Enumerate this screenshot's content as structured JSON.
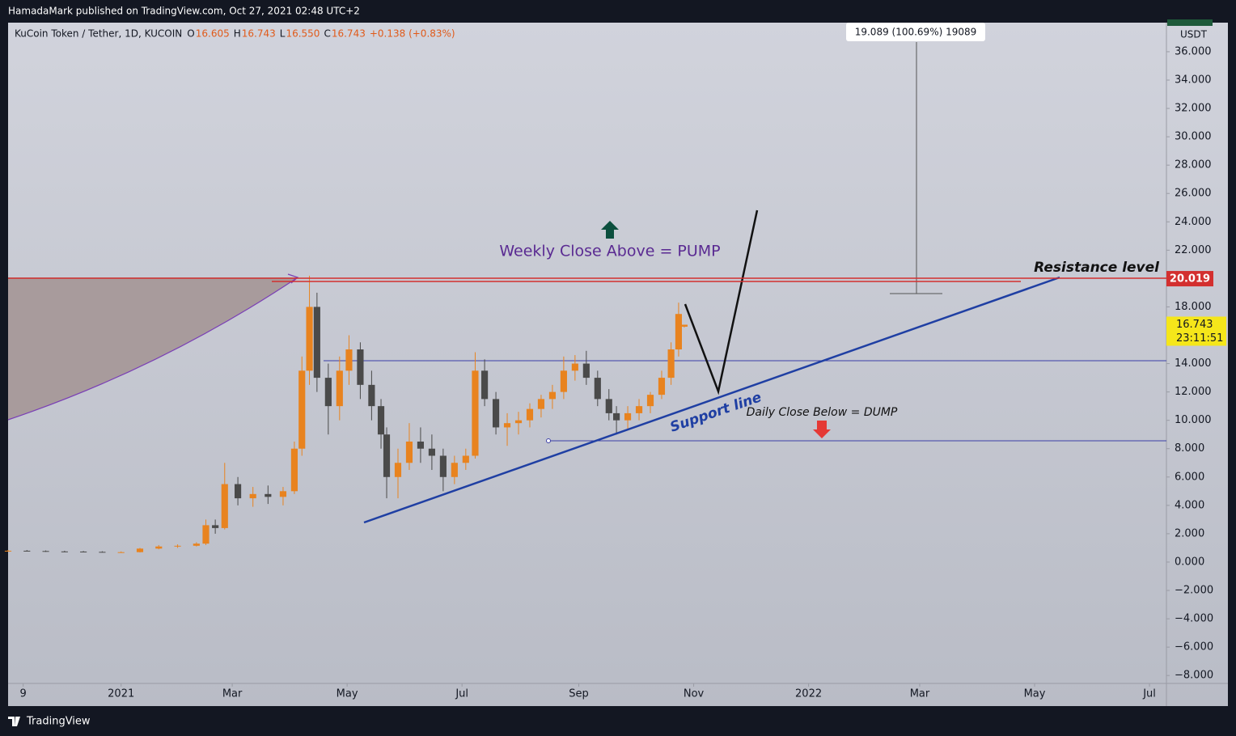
{
  "publisher_line": "HamadaMark published on TradingView.com, Oct 27, 2021 02:48 UTC+2",
  "footer": "TradingView",
  "chart_data": {
    "type": "candlestick",
    "symbol": "KuCoin Token / Tether, 1D, KUCOIN",
    "ohlc_header": [
      {
        "key": "O",
        "text": "16.605"
      },
      {
        "key": "H",
        "text": "16.743"
      },
      {
        "key": "L",
        "text": "16.550"
      },
      {
        "key": "C",
        "text": "16.743"
      }
    ],
    "change": "+0.138 (+0.83%)",
    "currency": "USDT",
    "up_color": "#e8831f",
    "down_color": "#4a4a4a",
    "x": [
      -60,
      -50,
      -40,
      -30,
      -20,
      -10,
      0,
      10,
      20,
      30,
      40,
      45,
      50,
      55,
      62,
      70,
      78,
      86,
      92,
      96,
      100,
      104,
      110,
      116,
      121,
      127,
      133,
      138,
      141,
      147,
      153,
      159,
      165,
      171,
      177,
      183,
      188,
      193,
      199,
      205,
      211,
      217,
      223,
      229,
      235,
      241,
      247,
      253,
      259,
      263,
      269,
      275,
      281,
      287,
      292,
      296,
      299
    ],
    "open": [
      0.8,
      0.8,
      0.78,
      0.75,
      0.74,
      0.72,
      0.7,
      0.7,
      0.95,
      1.1,
      1.15,
      1.3,
      2.6,
      2.4,
      5.5,
      4.5,
      4.8,
      4.6,
      5.0,
      8.0,
      13.5,
      18.0,
      13.0,
      11.0,
      13.5,
      15.0,
      12.5,
      11.0,
      9.0,
      6.0,
      7.0,
      8.5,
      8.0,
      7.5,
      6.0,
      7.0,
      7.5,
      13.5,
      11.5,
      9.5,
      9.8,
      10.0,
      10.8,
      11.5,
      12.0,
      13.5,
      14.0,
      13.0,
      11.5,
      10.5,
      10.0,
      10.5,
      11.0,
      11.8,
      13.0,
      15.0,
      16.605
    ],
    "high": [
      0.85,
      0.85,
      0.82,
      0.8,
      0.78,
      0.76,
      0.75,
      1.0,
      1.2,
      1.25,
      1.4,
      3.0,
      3.0,
      7.0,
      6.0,
      5.3,
      5.4,
      5.3,
      8.5,
      14.5,
      20.2,
      19.0,
      14.0,
      14.5,
      16.0,
      15.5,
      13.5,
      11.5,
      9.5,
      8.0,
      9.8,
      9.5,
      9.0,
      8.0,
      7.5,
      8.0,
      14.8,
      14.3,
      12.0,
      10.5,
      10.6,
      11.2,
      11.8,
      12.5,
      14.5,
      14.6,
      14.9,
      13.5,
      12.2,
      11.0,
      11.0,
      11.5,
      12.0,
      13.5,
      15.5,
      18.3,
      16.743
    ],
    "low": [
      0.75,
      0.75,
      0.72,
      0.7,
      0.68,
      0.68,
      0.65,
      0.68,
      0.9,
      1.0,
      1.1,
      1.2,
      2.0,
      2.3,
      4.0,
      3.9,
      4.1,
      4.0,
      4.8,
      7.5,
      12.5,
      12.0,
      9.0,
      10.0,
      12.5,
      11.5,
      10.0,
      8.0,
      4.5,
      4.5,
      6.5,
      7.0,
      6.5,
      5.0,
      5.5,
      6.5,
      7.3,
      11.0,
      9.0,
      8.2,
      9.0,
      9.5,
      10.2,
      10.8,
      11.5,
      12.8,
      12.5,
      11.0,
      10.0,
      9.0,
      9.4,
      10.0,
      10.5,
      11.5,
      12.5,
      14.5,
      16.55
    ],
    "close": [
      0.8,
      0.78,
      0.75,
      0.74,
      0.72,
      0.7,
      0.7,
      0.95,
      1.1,
      1.15,
      1.3,
      2.6,
      2.4,
      5.5,
      4.5,
      4.8,
      4.6,
      5.0,
      8.0,
      13.5,
      18.0,
      13.0,
      11.0,
      13.5,
      15.0,
      12.5,
      11.0,
      9.0,
      6.0,
      7.0,
      8.5,
      8.0,
      7.5,
      6.0,
      7.0,
      7.5,
      13.5,
      11.5,
      9.5,
      9.8,
      10.0,
      10.8,
      11.5,
      12.0,
      13.5,
      14.0,
      13.0,
      11.5,
      10.5,
      10.0,
      10.5,
      11.0,
      11.8,
      13.0,
      15.0,
      17.5,
      16.743
    ],
    "xlim": [
      -60,
      555
    ],
    "xticks": [
      {
        "value": -52,
        "label": "9"
      },
      {
        "value": 0,
        "label": "2021"
      },
      {
        "value": 59,
        "label": "Mar"
      },
      {
        "value": 120,
        "label": "May"
      },
      {
        "value": 181,
        "label": "Jul"
      },
      {
        "value": 243,
        "label": "Sep"
      },
      {
        "value": 304,
        "label": "Nov"
      },
      {
        "value": 365,
        "label": "2022"
      },
      {
        "value": 424,
        "label": "Mar"
      },
      {
        "value": 485,
        "label": "May"
      },
      {
        "value": 546,
        "label": "Jul"
      }
    ],
    "ylim": [
      -8.56,
      38.05
    ],
    "yticks": [
      {
        "value": 36,
        "label": "36.000"
      },
      {
        "value": 34,
        "label": "34.000"
      },
      {
        "value": 32,
        "label": "32.000"
      },
      {
        "value": 30,
        "label": "30.000"
      },
      {
        "value": 28,
        "label": "28.000"
      },
      {
        "value": 26,
        "label": "26.000"
      },
      {
        "value": 24,
        "label": "24.000"
      },
      {
        "value": 22,
        "label": "22.000"
      },
      {
        "value": 20,
        "label": "20.000"
      },
      {
        "value": 18,
        "label": "18.000"
      },
      {
        "value": 16,
        "label": "16.000"
      },
      {
        "value": 14,
        "label": "14.000"
      },
      {
        "value": 12,
        "label": "12.000"
      },
      {
        "value": 10,
        "label": "10.000"
      },
      {
        "value": 8,
        "label": "8.000"
      },
      {
        "value": 6,
        "label": "6.000"
      },
      {
        "value": 4,
        "label": "4.000"
      },
      {
        "value": 2,
        "label": "2.000"
      },
      {
        "value": 0,
        "label": "0.000"
      },
      {
        "value": -2,
        "label": "−2.000"
      },
      {
        "value": -4,
        "label": "−4.000"
      },
      {
        "value": -6,
        "label": "−6.000"
      },
      {
        "value": -8,
        "label": "−8.000"
      }
    ],
    "resistance": {
      "value": 20.019,
      "label": "20.019"
    },
    "last_price": {
      "value": 16.743,
      "label": "16.743"
    },
    "countdown": "23:11:51",
    "annotations": {
      "pump": "Weekly Close Above = PUMP",
      "resistance": "Resistance level",
      "support": "Support line",
      "dump": "Daily Close Below = DUMP",
      "measure": "19.089 (100.69%) 19089"
    }
  }
}
